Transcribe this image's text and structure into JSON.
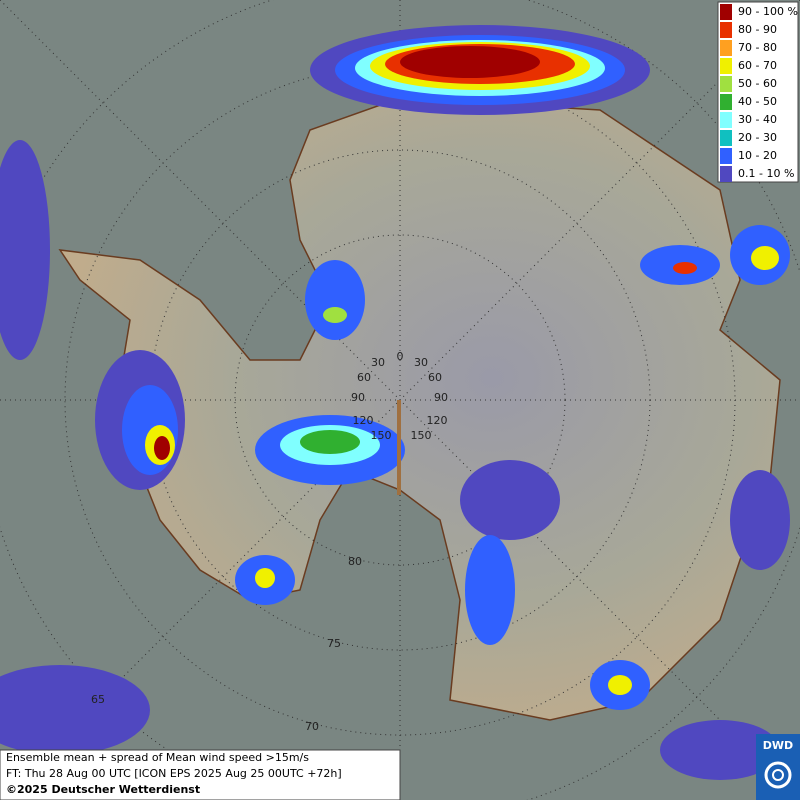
{
  "legend": {
    "items": [
      {
        "label": "90 - 100 %",
        "color": "#a00000"
      },
      {
        "label": "80 - 90",
        "color": "#e83000"
      },
      {
        "label": "70 - 80",
        "color": "#ffa020"
      },
      {
        "label": "60 - 70",
        "color": "#f0f000"
      },
      {
        "label": "50 - 60",
        "color": "#a0e040"
      },
      {
        "label": "40 - 50",
        "color": "#30b030"
      },
      {
        "label": "30 - 40",
        "color": "#80ffff"
      },
      {
        "label": "20 - 30",
        "color": "#10c0c0"
      },
      {
        "label": "10 - 20",
        "color": "#3060ff"
      },
      {
        "label": "0.1 - 10 %",
        "color": "#5048c0"
      }
    ]
  },
  "caption": {
    "lines": [
      "Ensemble mean + spread of Mean wind speed >15m/s",
      "FT: Thu 28 Aug 00 UTC [ICON EPS 2025 Aug 25 00UTC +72h]",
      "©2025 Deutscher Wetterdienst"
    ]
  },
  "logo": {
    "text": "DWD"
  },
  "grid_labels": [
    "30",
    "0",
    "30",
    "60",
    "90",
    "120",
    "150",
    "60",
    "90",
    "120",
    "150",
    "80",
    "75",
    "65",
    "70"
  ]
}
